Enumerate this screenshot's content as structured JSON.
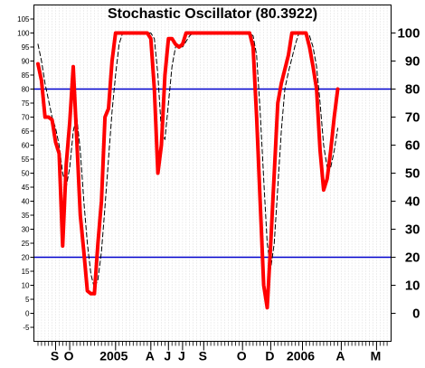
{
  "chart_data": {
    "type": "line",
    "title": "Stochastic Oscillator (80.3922)",
    "ylim": [
      -10,
      110
    ],
    "left_ticks": [
      "-5",
      "0",
      "5",
      "10",
      "15",
      "20",
      "25",
      "30",
      "35",
      "40",
      "45",
      "50",
      "55",
      "60",
      "65",
      "70",
      "75",
      "80",
      "85",
      "90",
      "95",
      "100",
      "105"
    ],
    "right_ticks": [
      "0",
      "10",
      "20",
      "30",
      "40",
      "50",
      "60",
      "70",
      "80",
      "90",
      "100"
    ],
    "reference_lines": [
      80,
      20
    ],
    "month_labels": [
      {
        "label": "S",
        "week": 5
      },
      {
        "label": "O",
        "week": 9
      },
      {
        "label": "2005",
        "week": 22
      },
      {
        "label": "A",
        "week": 32
      },
      {
        "label": "J",
        "week": 37
      },
      {
        "label": "J",
        "week": 41
      },
      {
        "label": "S",
        "week": 47
      },
      {
        "label": "O",
        "week": 58
      },
      {
        "label": "D",
        "week": 66
      },
      {
        "label": "2006",
        "week": 75
      },
      {
        "label": "A",
        "week": 86
      },
      {
        "label": "M",
        "week": 96
      }
    ],
    "x_count": 101,
    "series": [
      {
        "color": "#ff0000",
        "style": "thick",
        "points": [
          [
            0,
            89
          ],
          [
            1,
            83
          ],
          [
            2,
            70
          ],
          [
            3,
            70
          ],
          [
            4,
            69
          ],
          [
            5,
            61
          ],
          [
            6,
            57
          ],
          [
            7,
            24
          ],
          [
            8,
            53
          ],
          [
            9,
            68
          ],
          [
            10,
            88
          ],
          [
            11,
            62
          ],
          [
            12,
            35
          ],
          [
            13,
            22
          ],
          [
            14,
            8
          ],
          [
            15,
            7
          ],
          [
            16,
            7
          ],
          [
            17,
            25
          ],
          [
            18,
            40
          ],
          [
            19,
            70
          ],
          [
            20,
            73
          ],
          [
            21,
            90
          ],
          [
            22,
            100
          ],
          [
            23,
            100
          ],
          [
            24,
            100
          ],
          [
            25,
            100
          ],
          [
            26,
            100
          ],
          [
            27,
            100
          ],
          [
            28,
            100
          ],
          [
            29,
            100
          ],
          [
            30,
            100
          ],
          [
            31,
            100
          ],
          [
            32,
            98
          ],
          [
            33,
            80
          ],
          [
            34,
            50
          ],
          [
            35,
            60
          ],
          [
            36,
            85
          ],
          [
            37,
            98
          ],
          [
            38,
            98
          ],
          [
            39,
            96
          ],
          [
            40,
            95
          ],
          [
            41,
            96
          ],
          [
            42,
            100
          ],
          [
            43,
            100
          ],
          [
            44,
            100
          ],
          [
            45,
            100
          ],
          [
            46,
            100
          ],
          [
            47,
            100
          ],
          [
            48,
            100
          ],
          [
            49,
            100
          ],
          [
            50,
            100
          ],
          [
            51,
            100
          ],
          [
            52,
            100
          ],
          [
            53,
            100
          ],
          [
            54,
            100
          ],
          [
            55,
            100
          ],
          [
            56,
            100
          ],
          [
            57,
            100
          ],
          [
            58,
            100
          ],
          [
            59,
            100
          ],
          [
            60,
            100
          ],
          [
            61,
            95
          ],
          [
            62,
            70
          ],
          [
            63,
            40
          ],
          [
            64,
            10
          ],
          [
            65,
            2
          ],
          [
            66,
            25
          ],
          [
            67,
            50
          ],
          [
            68,
            75
          ],
          [
            69,
            82
          ],
          [
            70,
            87
          ],
          [
            71,
            92
          ],
          [
            72,
            100
          ],
          [
            73,
            100
          ],
          [
            74,
            100
          ],
          [
            75,
            100
          ],
          [
            76,
            100
          ],
          [
            77,
            95
          ],
          [
            78,
            88
          ],
          [
            79,
            80
          ],
          [
            80,
            58
          ],
          [
            81,
            44
          ],
          [
            82,
            48
          ],
          [
            83,
            58
          ],
          [
            84,
            70
          ],
          [
            85,
            80
          ]
        ]
      },
      {
        "color": "#000000",
        "style": "dashed",
        "points": [
          [
            0,
            96
          ],
          [
            1,
            90
          ],
          [
            2,
            82
          ],
          [
            3,
            76
          ],
          [
            4,
            70
          ],
          [
            5,
            66
          ],
          [
            6,
            60
          ],
          [
            7,
            50
          ],
          [
            8,
            45
          ],
          [
            9,
            52
          ],
          [
            10,
            65
          ],
          [
            11,
            70
          ],
          [
            12,
            58
          ],
          [
            13,
            40
          ],
          [
            14,
            25
          ],
          [
            15,
            14
          ],
          [
            16,
            9
          ],
          [
            17,
            12
          ],
          [
            18,
            22
          ],
          [
            19,
            38
          ],
          [
            20,
            55
          ],
          [
            21,
            72
          ],
          [
            22,
            85
          ],
          [
            23,
            96
          ],
          [
            24,
            100
          ],
          [
            25,
            100
          ],
          [
            26,
            100
          ],
          [
            27,
            100
          ],
          [
            28,
            100
          ],
          [
            29,
            100
          ],
          [
            30,
            100
          ],
          [
            31,
            100
          ],
          [
            32,
            100
          ],
          [
            33,
            98
          ],
          [
            34,
            85
          ],
          [
            35,
            65
          ],
          [
            36,
            62
          ],
          [
            37,
            75
          ],
          [
            38,
            88
          ],
          [
            39,
            95
          ],
          [
            40,
            96
          ],
          [
            41,
            95
          ],
          [
            42,
            97
          ],
          [
            43,
            99
          ],
          [
            44,
            100
          ],
          [
            45,
            100
          ],
          [
            46,
            100
          ],
          [
            47,
            100
          ],
          [
            48,
            100
          ],
          [
            49,
            100
          ],
          [
            50,
            100
          ],
          [
            51,
            100
          ],
          [
            52,
            100
          ],
          [
            53,
            100
          ],
          [
            54,
            100
          ],
          [
            55,
            100
          ],
          [
            56,
            100
          ],
          [
            57,
            100
          ],
          [
            58,
            100
          ],
          [
            59,
            100
          ],
          [
            60,
            100
          ],
          [
            61,
            99
          ],
          [
            62,
            92
          ],
          [
            63,
            72
          ],
          [
            64,
            48
          ],
          [
            65,
            25
          ],
          [
            66,
            16
          ],
          [
            67,
            25
          ],
          [
            68,
            45
          ],
          [
            69,
            65
          ],
          [
            70,
            80
          ],
          [
            71,
            86
          ],
          [
            72,
            91
          ],
          [
            73,
            96
          ],
          [
            74,
            100
          ],
          [
            75,
            100
          ],
          [
            76,
            100
          ],
          [
            77,
            99
          ],
          [
            78,
            95
          ],
          [
            79,
            88
          ],
          [
            80,
            75
          ],
          [
            81,
            60
          ],
          [
            82,
            52
          ],
          [
            83,
            52
          ],
          [
            84,
            58
          ],
          [
            85,
            66
          ]
        ]
      }
    ]
  }
}
